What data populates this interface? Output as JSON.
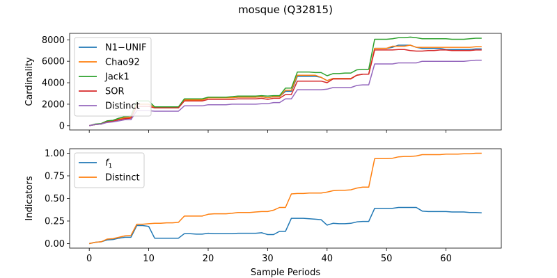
{
  "title": "mosque (Q32815)",
  "chart_data": [
    {
      "type": "line",
      "ylabel": "Cardinality",
      "xlabel": "",
      "xlim": [
        -3.3,
        69.3
      ],
      "ylim": [
        -400,
        8600
      ],
      "xticks": [
        0,
        10,
        20,
        30,
        40,
        50,
        60
      ],
      "yticks": [
        0,
        2000,
        4000,
        6000,
        8000
      ],
      "ytick_labels": [
        "0",
        "2000",
        "4000",
        "6000",
        "8000"
      ],
      "legend_position": "upper-left",
      "x": [
        0,
        1,
        2,
        3,
        4,
        5,
        6,
        7,
        8,
        9,
        10,
        11,
        12,
        13,
        14,
        15,
        16,
        17,
        18,
        19,
        20,
        21,
        22,
        23,
        24,
        25,
        26,
        27,
        28,
        29,
        30,
        31,
        32,
        33,
        34,
        35,
        36,
        37,
        38,
        39,
        40,
        41,
        42,
        43,
        44,
        45,
        46,
        47,
        48,
        49,
        50,
        51,
        52,
        53,
        54,
        55,
        56,
        57,
        58,
        59,
        60,
        61,
        62,
        63,
        64,
        65,
        66
      ],
      "series": [
        {
          "name": "N1−UNIF",
          "color": "#1f77b4",
          "values": [
            0,
            100,
            150,
            400,
            450,
            600,
            750,
            800,
            2000,
            2000,
            2000,
            1700,
            1700,
            1700,
            1700,
            1700,
            2400,
            2400,
            2400,
            2400,
            2600,
            2600,
            2600,
            2600,
            2600,
            2650,
            2650,
            2650,
            2650,
            2700,
            2600,
            2700,
            2700,
            3200,
            3200,
            4600,
            4600,
            4600,
            4600,
            4500,
            4200,
            4400,
            4400,
            4400,
            4400,
            4700,
            4800,
            4800,
            7200,
            7200,
            7200,
            7300,
            7500,
            7500,
            7500,
            7300,
            7200,
            7200,
            7200,
            7200,
            7100,
            7100,
            7100,
            7100,
            7100,
            7150,
            7150
          ]
        },
        {
          "name": "Chao92",
          "color": "#ff7f0e",
          "values": [
            0,
            100,
            150,
            400,
            450,
            600,
            750,
            800,
            2000,
            2000,
            2000,
            1700,
            1700,
            1700,
            1700,
            1700,
            2400,
            2400,
            2400,
            2400,
            2600,
            2600,
            2600,
            2600,
            2600,
            2650,
            2650,
            2650,
            2650,
            2700,
            2600,
            2700,
            2700,
            3300,
            3300,
            4700,
            4700,
            4700,
            4700,
            4500,
            4200,
            4400,
            4400,
            4400,
            4400,
            4700,
            4800,
            4800,
            7200,
            7200,
            7200,
            7400,
            7400,
            7400,
            7500,
            7300,
            7300,
            7300,
            7300,
            7300,
            7300,
            7300,
            7300,
            7300,
            7300,
            7350,
            7350
          ]
        },
        {
          "name": "Jack1",
          "color": "#2ca02c",
          "values": [
            0,
            150,
            200,
            450,
            500,
            700,
            850,
            900,
            2300,
            2300,
            2300,
            1750,
            1750,
            1750,
            1750,
            1750,
            2500,
            2500,
            2500,
            2500,
            2650,
            2650,
            2650,
            2650,
            2700,
            2750,
            2750,
            2750,
            2750,
            2800,
            2750,
            2800,
            2800,
            3500,
            3500,
            5000,
            5000,
            5000,
            4950,
            4950,
            4650,
            4850,
            4850,
            4900,
            4900,
            5200,
            5250,
            5250,
            8050,
            8050,
            8050,
            8100,
            8200,
            8200,
            8250,
            8200,
            8100,
            8100,
            8100,
            8100,
            8100,
            8050,
            8050,
            8050,
            8100,
            8150,
            8150
          ]
        },
        {
          "name": "SOR",
          "color": "#d62728",
          "values": [
            0,
            100,
            150,
            350,
            400,
            550,
            650,
            700,
            1800,
            1800,
            1800,
            1650,
            1650,
            1650,
            1650,
            1650,
            2300,
            2300,
            2300,
            2300,
            2450,
            2450,
            2450,
            2450,
            2450,
            2500,
            2500,
            2500,
            2500,
            2550,
            2450,
            2550,
            2550,
            2900,
            2900,
            4150,
            4150,
            4150,
            4150,
            4150,
            4000,
            4350,
            4350,
            4350,
            4350,
            4700,
            4800,
            4800,
            7050,
            7050,
            7050,
            7050,
            7100,
            7100,
            7000,
            6950,
            6950,
            7000,
            7000,
            7050,
            7050,
            7000,
            7000,
            7000,
            7000,
            7050,
            7050
          ]
        },
        {
          "name": "Distinct",
          "color": "#9467bd",
          "values": [
            0,
            100,
            150,
            300,
            350,
            450,
            550,
            550,
            1400,
            1400,
            1400,
            1350,
            1350,
            1350,
            1350,
            1350,
            1850,
            1850,
            1850,
            1850,
            1950,
            1950,
            1950,
            1950,
            2000,
            2000,
            2000,
            2000,
            2000,
            2050,
            2050,
            2150,
            2150,
            2500,
            2500,
            3350,
            3350,
            3350,
            3350,
            3350,
            3400,
            3550,
            3550,
            3550,
            3550,
            3750,
            3800,
            3800,
            5750,
            5750,
            5750,
            5750,
            5850,
            5850,
            5850,
            5850,
            6000,
            6000,
            6000,
            6000,
            6000,
            6000,
            6000,
            6000,
            6050,
            6100,
            6100
          ]
        }
      ]
    },
    {
      "type": "line",
      "ylabel": "Indicators",
      "xlabel": "Sample Periods",
      "xlim": [
        -3.3,
        69.3
      ],
      "ylim": [
        -0.05,
        1.05
      ],
      "xticks": [
        0,
        10,
        20,
        30,
        40,
        50,
        60
      ],
      "xtick_labels": [
        "0",
        "10",
        "20",
        "30",
        "40",
        "50",
        "60"
      ],
      "yticks": [
        0,
        0.25,
        0.5,
        0.75,
        1.0
      ],
      "ytick_labels": [
        "0.00",
        "0.25",
        "0.50",
        "0.75",
        "1.00"
      ],
      "legend_position": "upper-left",
      "x": [
        0,
        1,
        2,
        3,
        4,
        5,
        6,
        7,
        8,
        9,
        10,
        11,
        12,
        13,
        14,
        15,
        16,
        17,
        18,
        19,
        20,
        21,
        22,
        23,
        24,
        25,
        26,
        27,
        28,
        29,
        30,
        31,
        32,
        33,
        34,
        35,
        36,
        37,
        38,
        39,
        40,
        41,
        42,
        43,
        44,
        45,
        46,
        47,
        48,
        49,
        50,
        51,
        52,
        53,
        54,
        55,
        56,
        57,
        58,
        59,
        60,
        61,
        62,
        63,
        64,
        65,
        66
      ],
      "series": [
        {
          "name": "f1",
          "color": "#1f77b4",
          "values": [
            0,
            0.015,
            0.02,
            0.04,
            0.045,
            0.06,
            0.07,
            0.07,
            0.2,
            0.2,
            0.19,
            0.06,
            0.06,
            0.06,
            0.06,
            0.06,
            0.11,
            0.11,
            0.105,
            0.105,
            0.115,
            0.11,
            0.11,
            0.11,
            0.11,
            0.115,
            0.115,
            0.115,
            0.115,
            0.12,
            0.1,
            0.1,
            0.135,
            0.135,
            0.28,
            0.28,
            0.28,
            0.275,
            0.27,
            0.265,
            0.205,
            0.225,
            0.22,
            0.22,
            0.225,
            0.24,
            0.245,
            0.245,
            0.39,
            0.39,
            0.39,
            0.39,
            0.4,
            0.4,
            0.4,
            0.4,
            0.36,
            0.355,
            0.355,
            0.355,
            0.355,
            0.35,
            0.35,
            0.35,
            0.345,
            0.345,
            0.34
          ]
        },
        {
          "name": "Distinct",
          "color": "#ff7f0e",
          "values": [
            0,
            0.015,
            0.02,
            0.05,
            0.055,
            0.07,
            0.085,
            0.09,
            0.215,
            0.215,
            0.22,
            0.225,
            0.225,
            0.23,
            0.23,
            0.235,
            0.305,
            0.305,
            0.305,
            0.305,
            0.325,
            0.33,
            0.33,
            0.33,
            0.335,
            0.345,
            0.345,
            0.345,
            0.35,
            0.355,
            0.355,
            0.37,
            0.4,
            0.4,
            0.55,
            0.555,
            0.555,
            0.56,
            0.56,
            0.56,
            0.57,
            0.585,
            0.59,
            0.59,
            0.595,
            0.615,
            0.625,
            0.625,
            0.94,
            0.94,
            0.94,
            0.945,
            0.96,
            0.965,
            0.965,
            0.97,
            0.985,
            0.985,
            0.985,
            0.985,
            0.99,
            0.99,
            0.99,
            0.995,
            0.995,
            1.0,
            1.0
          ]
        }
      ]
    }
  ]
}
